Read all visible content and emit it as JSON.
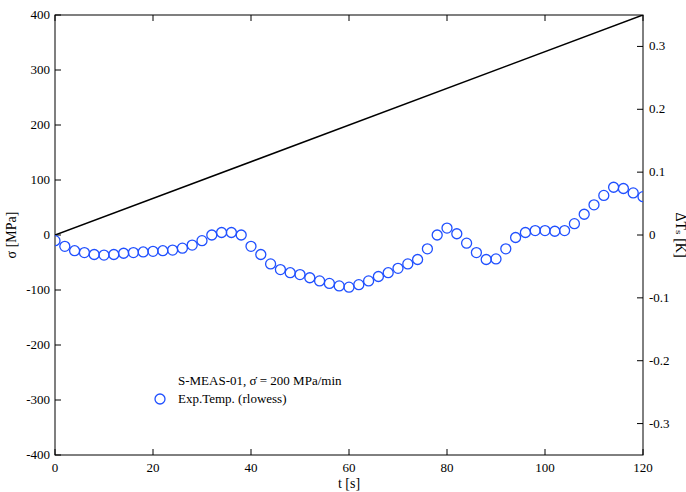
{
  "chart_data": {
    "type": "line",
    "x_label": "t [s]",
    "y_label": "σ [MPa]",
    "y2_label": "ΔTₛ [K]",
    "xlim": [
      0,
      120
    ],
    "xticks": [
      0,
      20,
      40,
      60,
      80,
      100,
      120
    ],
    "ylim": [
      -400,
      400
    ],
    "yticks": [
      -400,
      -300,
      -200,
      -100,
      0,
      100,
      200,
      300,
      400
    ],
    "y2lim": [
      -0.35,
      0.35
    ],
    "y2ticks": [
      -0.3,
      -0.2,
      -0.1,
      0,
      0.1,
      0.2,
      0.3
    ],
    "grid": false,
    "legend": "bottom",
    "series": [
      {
        "name": "S-MEAS-01, σ̇ = 200 MPa/min",
        "type": "line",
        "color": "#000000",
        "line_style": "solid",
        "x": [
          0,
          120
        ],
        "values": [
          0,
          400
        ]
      },
      {
        "name": "Exp.Temp. (rlowess)",
        "type": "scatter",
        "color": "#2050ff",
        "marker": "circle",
        "axis": "y2",
        "x": [
          0,
          2,
          4,
          6,
          8,
          10,
          12,
          14,
          16,
          18,
          20,
          22,
          24,
          26,
          28,
          30,
          32,
          34,
          36,
          38,
          40,
          42,
          44,
          46,
          48,
          50,
          52,
          54,
          56,
          58,
          60,
          62,
          64,
          66,
          68,
          70,
          72,
          74,
          76,
          78,
          80,
          82,
          84,
          86,
          88,
          90,
          92,
          94,
          96,
          98,
          100,
          102,
          104,
          106,
          108,
          110,
          112,
          114,
          116,
          118,
          120
        ],
        "values": [
          -0.009,
          -0.018,
          -0.025,
          -0.028,
          -0.031,
          -0.032,
          -0.031,
          -0.029,
          -0.028,
          -0.027,
          -0.026,
          -0.025,
          -0.024,
          -0.021,
          -0.016,
          -0.009,
          0,
          0.004,
          0.004,
          0,
          -0.018,
          -0.031,
          -0.046,
          -0.055,
          -0.06,
          -0.063,
          -0.068,
          -0.073,
          -0.077,
          -0.081,
          -0.083,
          -0.079,
          -0.073,
          -0.066,
          -0.06,
          -0.053,
          -0.046,
          -0.039,
          -0.022,
          0,
          0.011,
          0.002,
          -0.013,
          -0.028,
          -0.039,
          -0.038,
          -0.022,
          -0.004,
          0.004,
          0.007,
          0.007,
          0.006,
          0.007,
          0.018,
          0.033,
          0.048,
          0.063,
          0.076,
          0.074,
          0.067,
          0.061
        ]
      }
    ]
  }
}
